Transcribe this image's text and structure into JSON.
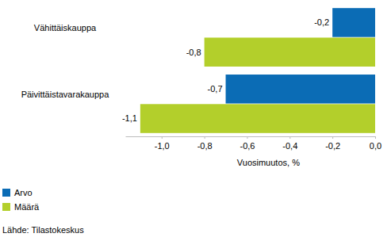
{
  "chart_data": {
    "type": "bar",
    "orientation": "horizontal",
    "categories": [
      "Vähittäiskauppa",
      "Päivittäistavarakauppa"
    ],
    "series": [
      {
        "name": "Arvo",
        "color": "#0b6cb5",
        "values": [
          -0.2,
          -0.7
        ],
        "value_labels": [
          "-0,2",
          "-0,7"
        ]
      },
      {
        "name": "Määrä",
        "color": "#b3cf2b",
        "values": [
          -0.8,
          -1.1
        ],
        "value_labels": [
          "-0,8",
          "-1,1"
        ]
      }
    ],
    "x_label": "Vuosimuutos, %",
    "xlim": [
      -1.17,
      0
    ],
    "xticks": [
      {
        "value": -1.0,
        "label": "-1,0"
      },
      {
        "value": -0.8,
        "label": "-0,8"
      },
      {
        "value": -0.6,
        "label": "-0,6"
      },
      {
        "value": -0.4,
        "label": "-0,4"
      },
      {
        "value": -0.2,
        "label": "-0,2"
      },
      {
        "value": 0,
        "label": "0,0"
      }
    ],
    "data_labels": true,
    "grid": false,
    "legend": "bottom-left",
    "source": "Lähde: Tilastokeskus"
  }
}
